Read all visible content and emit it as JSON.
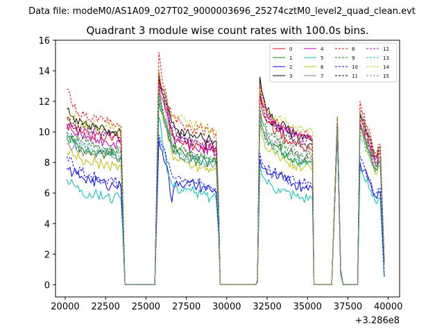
{
  "header": {
    "datafile_text": "Data file: modeM0/AS1A09_027T02_9000003696_25274cztM0_level2_quad_clean.evt"
  },
  "chart_data": {
    "type": "line",
    "title": "Quadrant 3 module wise count rates with 100.0s bins.",
    "xlabel": "",
    "ylabel": "",
    "x_offset_text": "+3.286e8",
    "xlim": [
      19400,
      40700
    ],
    "ylim": [
      -0.8,
      16
    ],
    "xticks": [
      20000,
      22500,
      25000,
      27500,
      30000,
      32500,
      35000,
      37500,
      40000
    ],
    "yticks": [
      0,
      2,
      4,
      6,
      8,
      10,
      12,
      14,
      16
    ],
    "grid": false,
    "legend_position": "top-right",
    "series_anchor_x": [
      20100,
      20500,
      21000,
      21500,
      22000,
      22500,
      23000,
      23450,
      23550,
      23700,
      25550,
      25800,
      26000,
      26300,
      26600,
      26900,
      27500,
      28000,
      28500,
      29000,
      29350,
      29500,
      29600,
      31800,
      31900,
      32050,
      32300,
      32700,
      33200,
      33700,
      34200,
      34700,
      35150,
      35300,
      35400,
      36500,
      36850,
      37050,
      37200,
      38100,
      38250,
      38500,
      38800,
      39000,
      39200,
      39500,
      39750
    ],
    "series": [
      {
        "name": "0",
        "color": "#ff0000",
        "style": "solid",
        "values": [
          10.5,
          10.2,
          10.0,
          9.8,
          9.9,
          9.6,
          9.7,
          9.6,
          6.0,
          0.0,
          0.0,
          13.5,
          12.5,
          11.5,
          10.0,
          9.5,
          9.2,
          9.0,
          9.0,
          8.8,
          8.9,
          5.0,
          0.0,
          0.0,
          0.3,
          12.5,
          11.0,
          10.5,
          10.0,
          9.5,
          9.2,
          9.0,
          8.9,
          8.8,
          0.0,
          0.0,
          10.8,
          1.0,
          0.0,
          0.0,
          10.8,
          10.2,
          9.2,
          8.5,
          8.0,
          8.6,
          1.5
        ]
      },
      {
        "name": "1",
        "color": "#008000",
        "style": "solid",
        "values": [
          9.6,
          9.3,
          9.0,
          8.8,
          8.7,
          8.6,
          8.5,
          8.4,
          5.5,
          0.0,
          0.0,
          12.0,
          11.2,
          10.2,
          9.0,
          8.7,
          8.4,
          8.2,
          8.1,
          8.0,
          7.9,
          4.5,
          0.0,
          0.0,
          0.3,
          11.2,
          10.0,
          9.4,
          9.0,
          8.6,
          8.3,
          8.0,
          8.1,
          8.0,
          0.0,
          0.0,
          10.2,
          0.9,
          0.0,
          0.0,
          10.2,
          9.6,
          8.8,
          8.0,
          7.6,
          8.0,
          1.4
        ]
      },
      {
        "name": "2",
        "color": "#0000ff",
        "style": "solid",
        "values": [
          7.6,
          7.3,
          7.1,
          6.9,
          6.8,
          6.6,
          6.5,
          6.4,
          4.2,
          0.0,
          0.0,
          9.5,
          8.8,
          7.8,
          5.4,
          6.8,
          6.6,
          6.5,
          6.4,
          6.2,
          6.0,
          3.4,
          0.0,
          0.0,
          0.2,
          8.2,
          7.6,
          7.2,
          7.0,
          6.8,
          6.6,
          6.4,
          6.5,
          6.3,
          0.0,
          0.0,
          10.0,
          0.8,
          0.0,
          0.0,
          8.0,
          7.5,
          6.8,
          6.2,
          5.8,
          6.0,
          0.5
        ]
      },
      {
        "name": "3",
        "color": "#000000",
        "style": "solid",
        "values": [
          11.5,
          11.0,
          10.7,
          10.4,
          10.3,
          10.1,
          10.0,
          9.9,
          6.2,
          0.0,
          0.0,
          14.0,
          12.8,
          11.8,
          10.6,
          10.2,
          10.0,
          9.8,
          9.6,
          9.5,
          9.4,
          5.3,
          0.0,
          0.0,
          0.3,
          13.6,
          12.2,
          11.0,
          10.5,
          10.2,
          9.8,
          9.5,
          9.5,
          9.4,
          0.0,
          0.0,
          11.0,
          1.0,
          0.0,
          0.0,
          11.2,
          10.8,
          9.8,
          9.0,
          8.4,
          9.0,
          1.6
        ]
      },
      {
        "name": "4",
        "color": "#bf00bf",
        "style": "solid",
        "values": [
          10.2,
          10.0,
          9.8,
          9.6,
          9.5,
          9.4,
          9.3,
          9.2,
          5.8,
          0.0,
          0.0,
          13.2,
          12.2,
          11.2,
          9.8,
          9.4,
          9.2,
          9.0,
          8.9,
          8.8,
          8.6,
          4.8,
          0.0,
          0.0,
          0.3,
          12.6,
          11.6,
          10.8,
          10.4,
          10.0,
          9.8,
          9.6,
          9.7,
          9.5,
          0.0,
          0.0,
          10.9,
          0.9,
          0.0,
          0.0,
          10.6,
          10.0,
          9.2,
          8.4,
          7.8,
          8.3,
          1.5
        ]
      },
      {
        "name": "5",
        "color": "#00bfbf",
        "style": "solid",
        "values": [
          6.9,
          6.6,
          6.2,
          6.0,
          5.9,
          5.8,
          5.7,
          5.6,
          3.8,
          0.0,
          0.0,
          11.0,
          9.5,
          7.5,
          6.6,
          6.4,
          6.2,
          6.0,
          5.9,
          5.7,
          5.6,
          3.2,
          0.0,
          0.0,
          0.2,
          7.8,
          7.0,
          6.6,
          6.3,
          6.1,
          5.9,
          5.7,
          5.8,
          5.6,
          0.0,
          0.0,
          10.0,
          0.7,
          0.0,
          0.0,
          7.6,
          7.0,
          6.3,
          5.8,
          5.4,
          5.6,
          0.5
        ]
      },
      {
        "name": "6",
        "color": "#bfbf00",
        "style": "solid",
        "values": [
          8.6,
          8.4,
          8.2,
          8.0,
          8.0,
          7.9,
          7.8,
          7.7,
          5.0,
          0.0,
          0.0,
          12.6,
          11.4,
          10.0,
          8.6,
          8.2,
          8.0,
          7.8,
          7.7,
          7.6,
          7.5,
          4.2,
          0.0,
          0.0,
          0.3,
          10.6,
          9.4,
          8.8,
          8.4,
          8.0,
          7.8,
          7.6,
          7.7,
          7.5,
          0.0,
          0.0,
          10.3,
          0.9,
          0.0,
          0.0,
          10.0,
          9.4,
          8.4,
          7.8,
          7.2,
          7.8,
          1.3
        ]
      },
      {
        "name": "7",
        "color": "#808080",
        "style": "solid",
        "values": [
          9.2,
          9.0,
          8.8,
          8.6,
          8.5,
          8.4,
          8.3,
          8.2,
          5.3,
          0.0,
          0.0,
          12.2,
          11.2,
          10.2,
          9.0,
          8.6,
          8.4,
          8.2,
          8.1,
          8.0,
          7.9,
          4.5,
          0.0,
          0.0,
          0.3,
          11.2,
          10.0,
          9.4,
          9.0,
          8.6,
          8.4,
          8.2,
          8.3,
          8.1,
          0.0,
          0.0,
          10.4,
          0.9,
          0.0,
          0.0,
          10.2,
          9.6,
          8.6,
          8.0,
          7.5,
          8.0,
          1.4
        ]
      },
      {
        "name": "8",
        "color": "#ff0000",
        "style": "dashed",
        "values": [
          12.8,
          11.6,
          11.0,
          10.8,
          10.7,
          10.6,
          10.5,
          10.4,
          6.6,
          0.0,
          0.0,
          15.2,
          13.4,
          12.2,
          11.0,
          10.6,
          10.4,
          10.2,
          10.1,
          10.0,
          9.9,
          5.6,
          0.0,
          0.0,
          0.3,
          13.2,
          12.0,
          11.0,
          10.6,
          10.2,
          9.9,
          9.7,
          9.8,
          9.6,
          0.0,
          0.0,
          11.0,
          1.0,
          0.0,
          0.0,
          12.0,
          11.2,
          10.2,
          9.2,
          8.6,
          9.2,
          1.6
        ]
      },
      {
        "name": "9",
        "color": "#008000",
        "style": "dashed",
        "values": [
          10.0,
          9.7,
          9.4,
          9.2,
          9.0,
          8.9,
          8.8,
          8.7,
          5.6,
          0.0,
          0.0,
          12.6,
          11.6,
          10.6,
          9.2,
          8.8,
          8.6,
          8.4,
          8.3,
          8.2,
          8.0,
          4.6,
          0.0,
          0.0,
          0.3,
          11.6,
          10.4,
          9.8,
          9.4,
          9.0,
          8.6,
          8.4,
          8.5,
          8.3,
          0.0,
          0.0,
          10.4,
          0.9,
          0.0,
          0.0,
          10.5,
          9.8,
          9.0,
          8.2,
          7.7,
          8.2,
          1.4
        ]
      },
      {
        "name": "10",
        "color": "#0000ff",
        "style": "dashed",
        "values": [
          8.4,
          7.8,
          7.4,
          7.2,
          7.0,
          6.8,
          6.7,
          6.6,
          4.4,
          0.0,
          0.0,
          9.8,
          9.0,
          8.0,
          7.2,
          7.0,
          6.8,
          6.7,
          6.6,
          6.4,
          6.2,
          3.5,
          0.0,
          0.0,
          0.2,
          8.6,
          7.8,
          7.4,
          7.2,
          7.0,
          6.8,
          6.6,
          6.7,
          6.5,
          0.0,
          0.0,
          10.1,
          0.8,
          0.0,
          0.0,
          8.4,
          7.8,
          7.0,
          6.4,
          6.0,
          6.3,
          0.6
        ]
      },
      {
        "name": "11",
        "color": "#000000",
        "style": "dashed",
        "values": [
          11.0,
          10.6,
          10.4,
          10.2,
          10.1,
          10.0,
          9.9,
          9.8,
          6.1,
          0.0,
          0.0,
          13.6,
          12.6,
          11.6,
          10.2,
          9.8,
          9.6,
          9.4,
          9.2,
          9.1,
          9.0,
          5.1,
          0.0,
          0.0,
          0.3,
          12.8,
          11.4,
          10.6,
          10.2,
          9.8,
          9.5,
          9.2,
          9.3,
          9.1,
          0.0,
          0.0,
          10.9,
          1.0,
          0.0,
          0.0,
          11.0,
          10.4,
          9.6,
          8.8,
          8.2,
          8.8,
          1.5
        ]
      },
      {
        "name": "12",
        "color": "#bf00bf",
        "style": "dashed",
        "values": [
          10.8,
          10.4,
          10.2,
          10.0,
          9.9,
          9.8,
          9.7,
          9.6,
          6.0,
          0.0,
          0.0,
          13.8,
          12.6,
          11.6,
          10.2,
          9.8,
          9.6,
          9.4,
          9.3,
          9.2,
          9.1,
          5.1,
          0.0,
          0.0,
          0.3,
          12.8,
          11.6,
          10.8,
          10.4,
          10.0,
          9.7,
          9.5,
          9.6,
          9.4,
          0.0,
          0.0,
          10.9,
          1.0,
          0.0,
          0.0,
          11.4,
          10.6,
          9.6,
          8.8,
          8.2,
          8.8,
          1.5
        ]
      },
      {
        "name": "13",
        "color": "#00bfbf",
        "style": "dashed",
        "values": [
          9.6,
          9.3,
          9.1,
          8.9,
          8.8,
          8.7,
          8.6,
          8.5,
          5.4,
          0.0,
          0.0,
          12.4,
          11.4,
          10.2,
          9.0,
          8.6,
          8.4,
          8.2,
          8.1,
          8.0,
          7.8,
          4.4,
          0.0,
          0.0,
          0.3,
          10.8,
          9.8,
          9.2,
          8.8,
          8.4,
          8.1,
          7.9,
          8.0,
          7.8,
          0.0,
          0.0,
          10.3,
          0.9,
          0.0,
          0.0,
          10.0,
          9.4,
          8.6,
          7.9,
          7.4,
          7.9,
          1.3
        ]
      },
      {
        "name": "14",
        "color": "#bfbf00",
        "style": "dashed",
        "values": [
          11.0,
          10.8,
          10.6,
          10.5,
          10.4,
          10.3,
          10.2,
          10.1,
          6.3,
          0.0,
          0.0,
          14.0,
          13.0,
          12.0,
          11.2,
          10.8,
          10.6,
          10.4,
          10.3,
          10.2,
          10.1,
          5.6,
          0.0,
          0.0,
          0.3,
          12.8,
          11.8,
          11.2,
          10.9,
          10.6,
          10.4,
          10.2,
          10.3,
          10.1,
          0.0,
          0.0,
          11.0,
          1.0,
          0.0,
          0.0,
          11.4,
          10.8,
          9.8,
          9.0,
          8.4,
          9.0,
          1.6
        ]
      },
      {
        "name": "15",
        "color": "#808080",
        "style": "dashed",
        "values": [
          9.8,
          9.5,
          9.3,
          9.1,
          9.0,
          8.9,
          8.8,
          8.7,
          5.5,
          0.0,
          0.0,
          12.6,
          11.6,
          10.6,
          9.4,
          9.0,
          8.8,
          8.6,
          8.5,
          8.4,
          8.3,
          4.7,
          0.0,
          0.0,
          0.3,
          11.4,
          10.4,
          9.8,
          9.4,
          9.0,
          8.8,
          8.6,
          8.7,
          8.5,
          0.0,
          0.0,
          10.5,
          0.9,
          0.0,
          0.0,
          10.4,
          9.8,
          9.0,
          8.3,
          7.8,
          8.3,
          1.4
        ]
      }
    ]
  }
}
